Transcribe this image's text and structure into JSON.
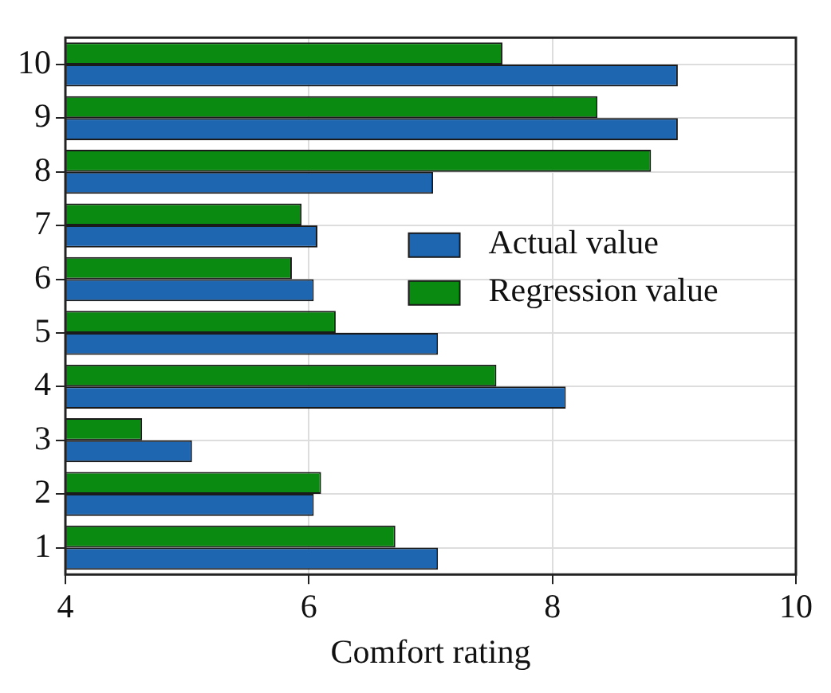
{
  "chart_data": {
    "type": "bar",
    "orientation": "horizontal",
    "xlabel": "Comfort rating",
    "categories": [
      "10",
      "9",
      "8",
      "7",
      "6",
      "5",
      "4",
      "3",
      "2",
      "1"
    ],
    "series": [
      {
        "name": "Actual value",
        "color": "#1f66b0",
        "values": [
          9.03,
          9.03,
          7.02,
          6.07,
          6.04,
          7.06,
          8.11,
          5.04,
          6.04,
          7.06
        ]
      },
      {
        "name": "Regression value",
        "color": "#0a8a10",
        "values": [
          7.59,
          8.37,
          8.81,
          5.94,
          5.86,
          6.22,
          7.54,
          4.63,
          6.1,
          6.71
        ]
      }
    ],
    "xlim": [
      4,
      10
    ],
    "xticks": [
      4,
      6,
      8,
      10
    ],
    "grid": true,
    "legend": "right"
  }
}
